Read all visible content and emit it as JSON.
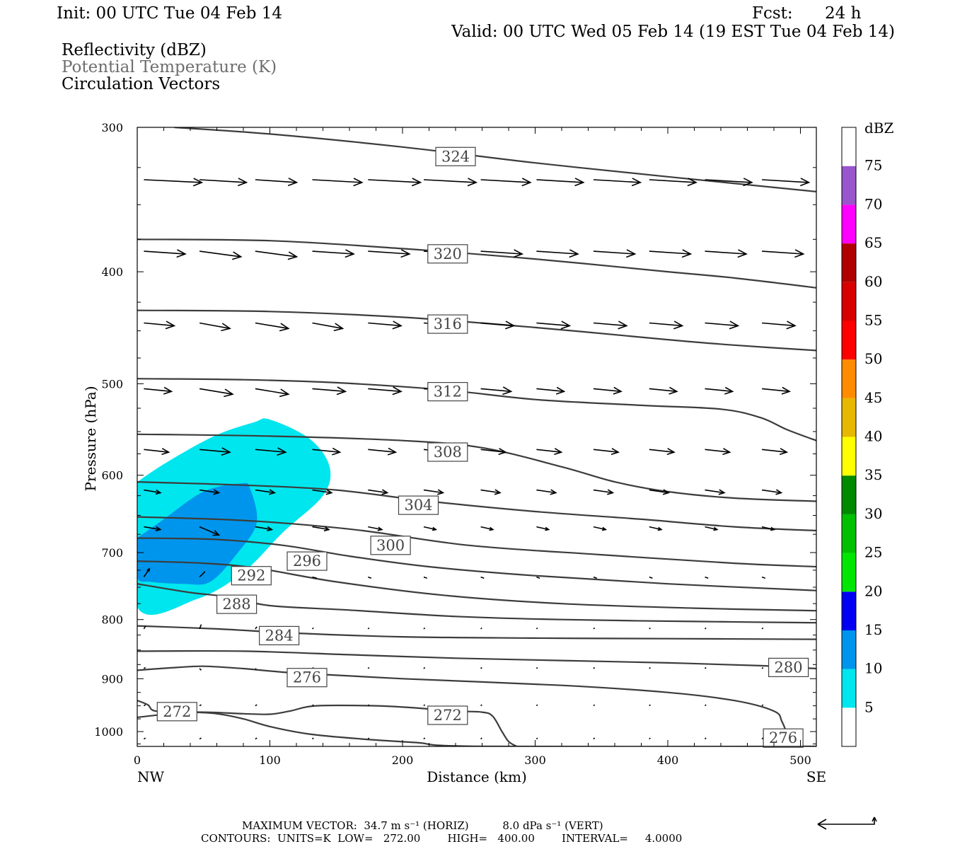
{
  "header": {
    "init": "Init: 00 UTC Tue 04 Feb 14",
    "fcst_label": "Fcst:",
    "fcst_value": "24 h",
    "valid": "Valid: 00 UTC Wed 05 Feb 14 (19 EST Tue 04 Feb 14)",
    "fields": [
      "Reflectivity (dBZ)",
      "Potential Temperature (K)",
      "Circulation Vectors"
    ]
  },
  "chart_data": {
    "type": "cross-section",
    "xlabel": "Distance (km)",
    "ylabel": "Pressure (hPa)",
    "x_ticks": [
      "0",
      "100",
      "200",
      "300",
      "400",
      "500"
    ],
    "x_ends": {
      "left": "NW",
      "right": "SE"
    },
    "y_ticks": [
      "300",
      "400",
      "500",
      "600",
      "700",
      "800",
      "900",
      "1000"
    ],
    "xlim": [
      0,
      512
    ],
    "ylim": [
      1030,
      300
    ],
    "y_scale": "log",
    "colorbar": {
      "title": "dBZ",
      "levels": [
        5,
        10,
        15,
        20,
        25,
        30,
        35,
        40,
        45,
        50,
        55,
        60,
        65,
        70,
        75
      ],
      "colors": [
        "#ffffff",
        "#00e6ee",
        "#0095ec",
        "#0000f2",
        "#00e600",
        "#00c000",
        "#008a00",
        "#ffff00",
        "#e6b800",
        "#ff8c00",
        "#ff0000",
        "#d80000",
        "#b00000",
        "#ff00ff",
        "#9955cc",
        "#ffffff"
      ]
    },
    "reflectivity": [
      {
        "level": 5,
        "color": "#00e6ee",
        "outline": [
          [
            0,
            608
          ],
          [
            22,
            585
          ],
          [
            58,
            555
          ],
          [
            88,
            540
          ],
          [
            100,
            537
          ],
          [
            130,
            558
          ],
          [
            145,
            590
          ],
          [
            140,
            625
          ],
          [
            110,
            672
          ],
          [
            80,
            728
          ],
          [
            45,
            768
          ],
          [
            0,
            780
          ]
        ]
      },
      {
        "level": 10,
        "color": "#0095ec",
        "outline": [
          [
            0,
            680
          ],
          [
            20,
            655
          ],
          [
            50,
            620
          ],
          [
            78,
            610
          ],
          [
            85,
            616
          ],
          [
            90,
            660
          ],
          [
            75,
            702
          ],
          [
            55,
            742
          ],
          [
            35,
            745
          ],
          [
            10,
            742
          ],
          [
            0,
            735
          ]
        ]
      }
    ],
    "theta": [
      {
        "value": 272,
        "points": [
          [
            0,
            940
          ],
          [
            8,
            948
          ],
          [
            14,
            960
          ],
          [
            40,
            962
          ],
          [
            60,
            965
          ],
          [
            80,
            975
          ],
          [
            100,
            990
          ],
          [
            130,
            1005
          ],
          [
            170,
            1015
          ],
          [
            210,
            1022
          ],
          [
            260,
            1030
          ],
          [
            512,
            1030
          ]
        ]
      },
      {
        "value": 272,
        "points": [
          [
            0,
            972
          ],
          [
            40,
            962
          ],
          [
            80,
            965
          ],
          [
            100,
            966
          ],
          [
            115,
            960
          ],
          [
            135,
            950
          ],
          [
            180,
            950
          ],
          [
            210,
            954
          ],
          [
            240,
            960
          ],
          [
            260,
            962
          ],
          [
            268,
            970
          ],
          [
            275,
            1000
          ],
          [
            280,
            1020
          ],
          [
            286,
            1030
          ]
        ]
      },
      {
        "value": 276,
        "points": [
          [
            0,
            885
          ],
          [
            30,
            880
          ],
          [
            50,
            878
          ],
          [
            80,
            882
          ],
          [
            120,
            890
          ],
          [
            200,
            900
          ],
          [
            320,
            912
          ],
          [
            400,
            925
          ],
          [
            450,
            940
          ],
          [
            480,
            960
          ],
          [
            486,
            980
          ],
          [
            490,
            1010
          ],
          [
            488,
            1030
          ]
        ]
      },
      {
        "value": 280,
        "points": [
          [
            0,
            852
          ],
          [
            80,
            852
          ],
          [
            160,
            858
          ],
          [
            240,
            864
          ],
          [
            320,
            868
          ],
          [
            400,
            872
          ],
          [
            470,
            877
          ],
          [
            512,
            882
          ]
        ]
      },
      {
        "value": 284,
        "points": [
          [
            0,
            810
          ],
          [
            60,
            815
          ],
          [
            120,
            822
          ],
          [
            200,
            828
          ],
          [
            300,
            830
          ],
          [
            400,
            831
          ],
          [
            512,
            832
          ]
        ]
      },
      {
        "value": 288,
        "points": [
          [
            0,
            745
          ],
          [
            40,
            758
          ],
          [
            70,
            765
          ],
          [
            100,
            778
          ],
          [
            160,
            785
          ],
          [
            240,
            795
          ],
          [
            320,
            800
          ],
          [
            420,
            803
          ],
          [
            512,
            805
          ]
        ]
      },
      {
        "value": 292,
        "points": [
          [
            0,
            712
          ],
          [
            50,
            715
          ],
          [
            90,
            722
          ],
          [
            150,
            742
          ],
          [
            230,
            762
          ],
          [
            320,
            775
          ],
          [
            420,
            782
          ],
          [
            512,
            786
          ]
        ]
      },
      {
        "value": 296,
        "points": [
          [
            0,
            680
          ],
          [
            60,
            682
          ],
          [
            110,
            690
          ],
          [
            160,
            705
          ],
          [
            220,
            720
          ],
          [
            300,
            733
          ],
          [
            400,
            745
          ],
          [
            512,
            755
          ]
        ]
      },
      {
        "value": 300,
        "points": [
          [
            0,
            652
          ],
          [
            60,
            655
          ],
          [
            110,
            660
          ],
          [
            170,
            670
          ],
          [
            250,
            690
          ],
          [
            350,
            703
          ],
          [
            450,
            715
          ],
          [
            512,
            720
          ]
        ]
      },
      {
        "value": 304,
        "points": [
          [
            0,
            608
          ],
          [
            80,
            612
          ],
          [
            150,
            618
          ],
          [
            220,
            632
          ],
          [
            300,
            645
          ],
          [
            380,
            655
          ],
          [
            450,
            665
          ],
          [
            512,
            670
          ]
        ]
      },
      {
        "value": 308,
        "points": [
          [
            0,
            553
          ],
          [
            100,
            555
          ],
          [
            200,
            560
          ],
          [
            260,
            568
          ],
          [
            320,
            590
          ],
          [
            360,
            608
          ],
          [
            400,
            620
          ],
          [
            450,
            628
          ],
          [
            512,
            632
          ]
        ]
      },
      {
        "value": 312,
        "points": [
          [
            0,
            495
          ],
          [
            80,
            496
          ],
          [
            150,
            499
          ],
          [
            230,
            506
          ],
          [
            300,
            516
          ],
          [
            380,
            522
          ],
          [
            440,
            526
          ],
          [
            470,
            535
          ],
          [
            490,
            548
          ],
          [
            512,
            560
          ]
        ]
      },
      {
        "value": 316,
        "points": [
          [
            0,
            432
          ],
          [
            100,
            433
          ],
          [
            200,
            438
          ],
          [
            300,
            447
          ],
          [
            400,
            458
          ],
          [
            450,
            463
          ],
          [
            512,
            468
          ]
        ]
      },
      {
        "value": 320,
        "points": [
          [
            0,
            375
          ],
          [
            100,
            376
          ],
          [
            200,
            382
          ],
          [
            300,
            390
          ],
          [
            400,
            400
          ],
          [
            450,
            405
          ],
          [
            512,
            413
          ]
        ]
      },
      {
        "value": 324,
        "points": [
          [
            28,
            300
          ],
          [
            100,
            304
          ],
          [
            200,
            312
          ],
          [
            300,
            322
          ],
          [
            400,
            331
          ],
          [
            512,
            341
          ]
        ]
      }
    ],
    "contour_labels": [
      {
        "text": "324",
        "x": 240,
        "p": 318
      },
      {
        "text": "320",
        "x": 234,
        "p": 386
      },
      {
        "text": "316",
        "x": 234,
        "p": 444
      },
      {
        "text": "312",
        "x": 234,
        "p": 508
      },
      {
        "text": "308",
        "x": 234,
        "p": 573
      },
      {
        "text": "304",
        "x": 212,
        "p": 637
      },
      {
        "text": "300",
        "x": 191,
        "p": 690
      },
      {
        "text": "296",
        "x": 128,
        "p": 712
      },
      {
        "text": "292",
        "x": 86,
        "p": 733
      },
      {
        "text": "288",
        "x": 75,
        "p": 776
      },
      {
        "text": "284",
        "x": 107,
        "p": 826
      },
      {
        "text": "276",
        "x": 128,
        "p": 898
      },
      {
        "text": "280",
        "x": 491,
        "p": 880
      },
      {
        "text": "272",
        "x": 30,
        "p": 961
      },
      {
        "text": "272",
        "x": 234,
        "p": 968
      },
      {
        "text": "276",
        "x": 487,
        "p": 1013
      }
    ],
    "vector_columns_x": [
      5,
      47,
      89,
      132,
      174,
      216,
      259,
      301,
      344,
      386,
      428,
      471
    ],
    "vectors": [
      {
        "p": 333,
        "u": [
          1.05,
          0.85,
          0.75,
          0.9,
          0.95,
          0.95,
          0.9,
          0.85,
          0.85,
          0.85,
          0.85,
          0.85
        ],
        "w": [
          0.05,
          0.05,
          0.05,
          0.05,
          0.05,
          0.05,
          0.05,
          0.05,
          0.05,
          0.05,
          0.05,
          0.05
        ]
      },
      {
        "p": 384,
        "u": [
          0.75,
          0.75,
          0.75,
          0.75,
          0.75,
          0.75,
          0.75,
          0.75,
          0.75,
          0.75,
          0.75,
          0.75
        ],
        "w": [
          0.05,
          0.1,
          0.1,
          0.05,
          0.05,
          0.05,
          0.05,
          0.05,
          0.05,
          0.05,
          0.05,
          0.05
        ]
      },
      {
        "p": 443,
        "u": [
          0.55,
          0.55,
          0.6,
          0.55,
          0.6,
          0.6,
          0.6,
          0.6,
          0.6,
          0.6,
          0.6,
          0.6
        ],
        "w": [
          0.05,
          0.1,
          0.1,
          0.1,
          0.05,
          0.05,
          0.05,
          0.05,
          0.05,
          0.05,
          0.05,
          0.05
        ]
      },
      {
        "p": 505,
        "u": [
          0.5,
          0.6,
          0.6,
          0.6,
          0.6,
          0.6,
          0.55,
          0.5,
          0.5,
          0.5,
          0.5,
          0.5
        ],
        "w": [
          0.05,
          0.1,
          0.1,
          0.05,
          0.05,
          0.05,
          0.05,
          0.05,
          0.05,
          0.05,
          0.05,
          0.05
        ]
      },
      {
        "p": 570,
        "u": [
          0.45,
          0.55,
          0.55,
          0.5,
          0.5,
          0.45,
          0.45,
          0.45,
          0.45,
          0.45,
          0.45,
          0.45
        ],
        "w": [
          0.05,
          0.05,
          0.05,
          0.05,
          0.05,
          0.05,
          0.05,
          0.05,
          0.05,
          0.05,
          0.05,
          0.05
        ]
      },
      {
        "p": 618,
        "u": [
          0.3,
          0.35,
          0.35,
          0.35,
          0.35,
          0.35,
          0.35,
          0.35,
          0.35,
          0.35,
          0.35,
          0.35
        ],
        "w": [
          0.05,
          0.05,
          0.05,
          0.05,
          0.05,
          0.05,
          0.05,
          0.05,
          0.05,
          0.05,
          0.05,
          0.05
        ]
      },
      {
        "p": 665,
        "u": [
          0.3,
          0.35,
          0.3,
          0.3,
          0.25,
          0.22,
          0.22,
          0.22,
          0.22,
          0.22,
          0.22,
          0.22
        ],
        "w": [
          0.05,
          0.15,
          0.05,
          0.05,
          0.05,
          0.05,
          0.05,
          0.05,
          0.05,
          0.05,
          0.05,
          0.05
        ]
      },
      {
        "p": 735,
        "u": [
          0.1,
          0.1,
          0.1,
          0.08,
          0.06,
          0.06,
          0.06,
          0.06,
          0.06,
          0.06,
          0.06,
          0.06
        ],
        "w": [
          -0.15,
          -0.1,
          0.02,
          0.02,
          0.02,
          0.02,
          0.02,
          0.02,
          0.02,
          0.02,
          0.02,
          0.02
        ]
      },
      {
        "p": 815,
        "u": [
          0.03,
          0.03,
          0.03,
          0.02,
          0.02,
          0.02,
          0.02,
          0.02,
          0.02,
          0.02,
          0.02,
          0.02
        ],
        "w": [
          -0.05,
          -0.08,
          -0.04,
          -0.02,
          -0.02,
          -0.02,
          -0.02,
          -0.02,
          -0.02,
          -0.02,
          -0.02,
          -0.02
        ]
      },
      {
        "p": 882,
        "u": [
          0.03,
          0.03,
          0.02,
          0.02,
          0.02,
          0.02,
          0.02,
          0.02,
          0.02,
          0.02,
          0.02,
          0.02
        ],
        "w": [
          -0.02,
          0.03,
          0.02,
          -0.02,
          -0.02,
          -0.02,
          -0.02,
          -0.02,
          -0.02,
          -0.02,
          -0.02,
          -0.02
        ]
      },
      {
        "p": 950,
        "u": [
          0.03,
          0.03,
          0.03,
          0.02,
          0.02,
          0.02,
          0.02,
          0.02,
          0.02,
          0.02,
          0.02,
          0.02
        ],
        "w": [
          -0.02,
          -0.02,
          -0.02,
          -0.02,
          -0.02,
          -0.02,
          -0.02,
          -0.02,
          -0.02,
          -0.02,
          -0.02,
          -0.02
        ]
      },
      {
        "p": 1015,
        "u": [
          0.03,
          0.03,
          0.03,
          0.02,
          0.02,
          0.02,
          0.02,
          0.02,
          0.02,
          0.02,
          0.02,
          0.02
        ],
        "w": [
          -0.02,
          -0.02,
          -0.02,
          -0.02,
          -0.02,
          -0.02,
          -0.02,
          -0.02,
          -0.02,
          -0.02,
          -0.02,
          -0.02
        ]
      }
    ]
  },
  "footer": {
    "max_vector": "MAXIMUM VECTOR:  34.7 m s⁻¹ (HORIZ)          8.0 dPa s⁻¹ (VERT)",
    "contours": "CONTOURS:  UNITS=K  LOW=   272.00        HIGH=   400.00        INTERVAL=     4.0000"
  }
}
